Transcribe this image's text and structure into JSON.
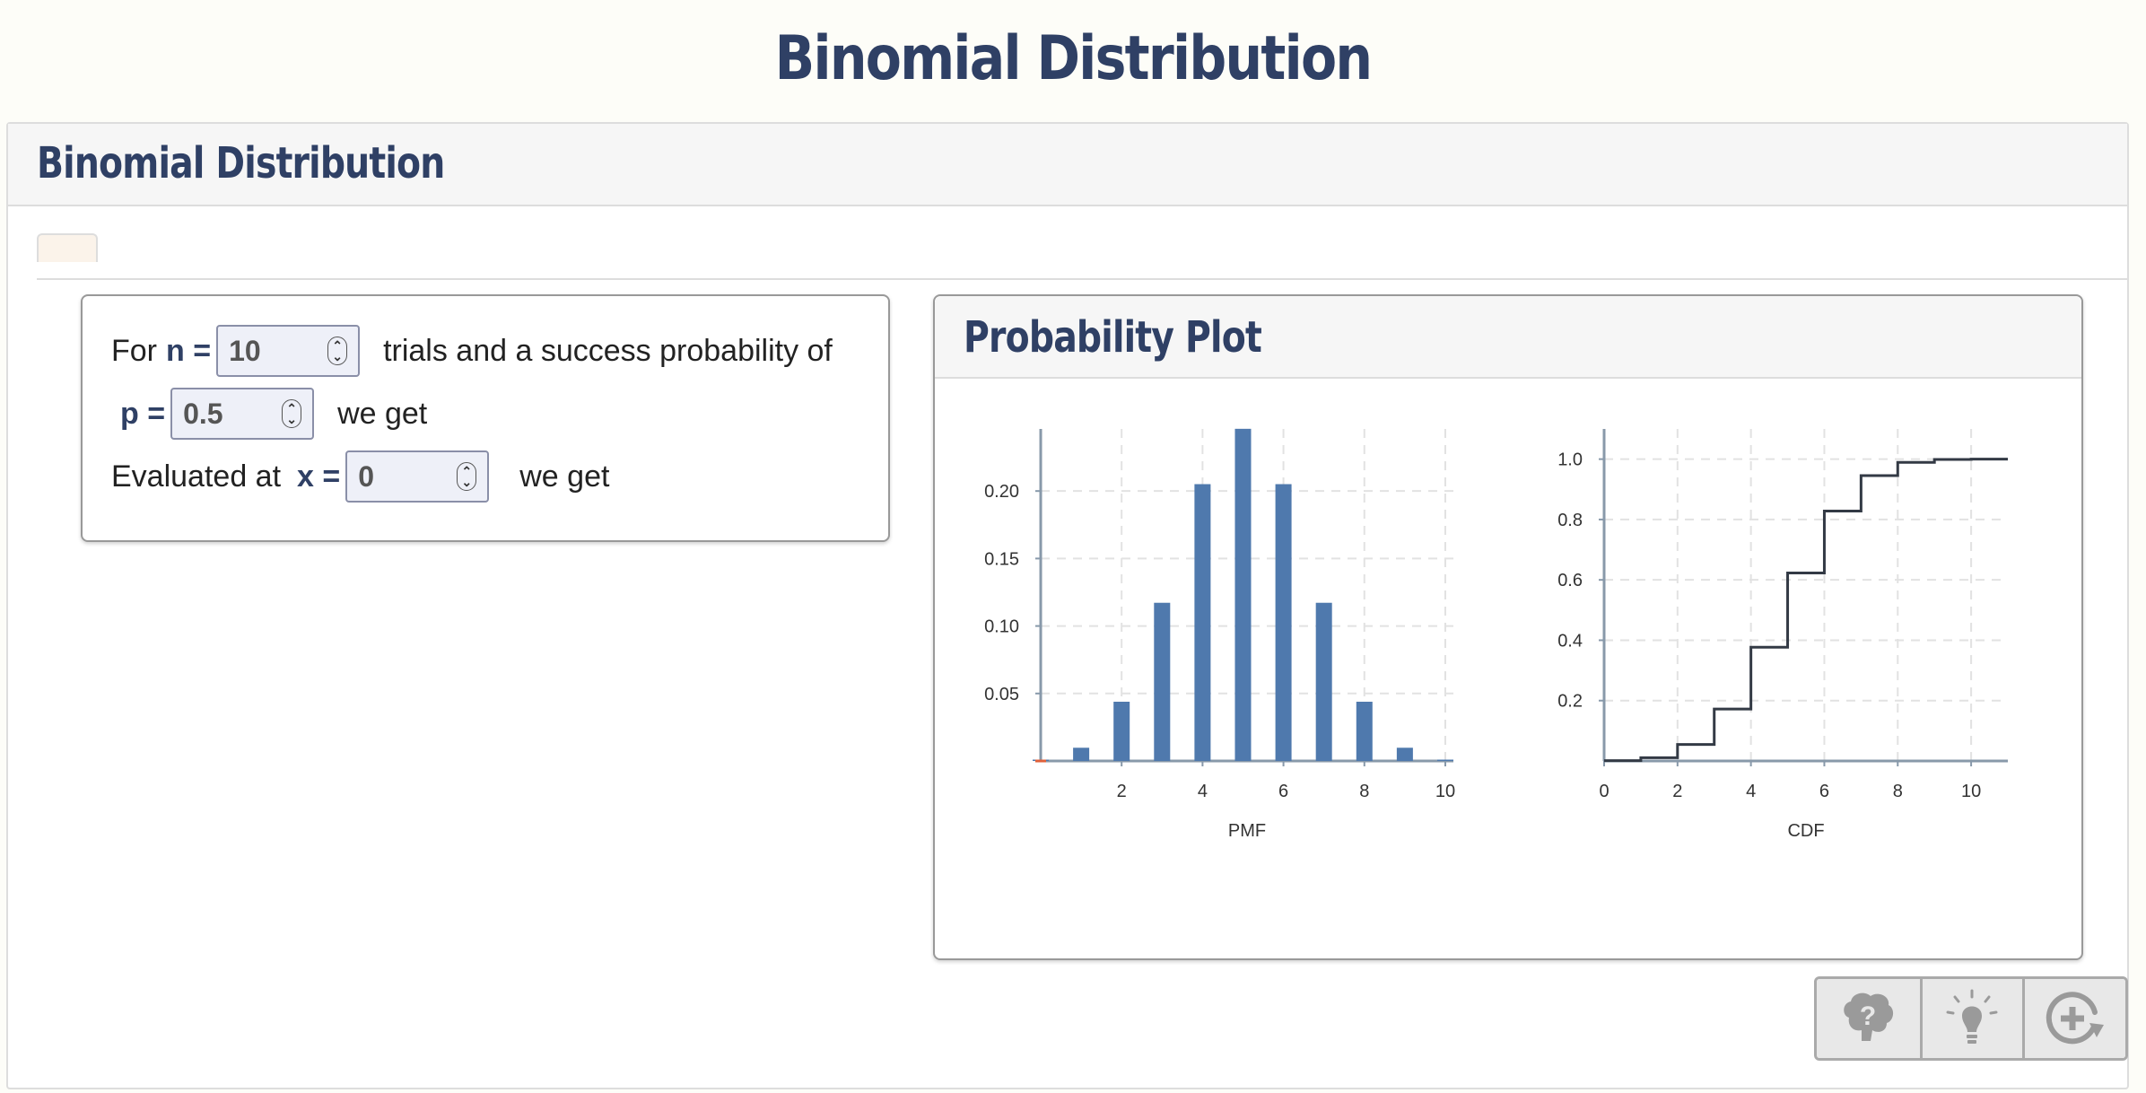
{
  "page": {
    "title": "Binomial Distribution"
  },
  "panel": {
    "title": "Binomial Distribution"
  },
  "inputs": {
    "for_label": "For",
    "n_label": "n =",
    "n_value": "10",
    "trials_text": "trials and a success probability of",
    "p_label": "p =",
    "p_value": "0.5",
    "we_get_1": "we get",
    "evaluated_label": "Evaluated at",
    "x_label": "x =",
    "x_value": "0",
    "we_get_2": "we get"
  },
  "plot_card": {
    "title": "Probability Plot"
  },
  "chart_data": [
    {
      "type": "bar",
      "xlabel": "PMF",
      "x": [
        0,
        1,
        2,
        3,
        4,
        5,
        6,
        7,
        8,
        9,
        10
      ],
      "values": [
        0.001,
        0.0098,
        0.0439,
        0.1172,
        0.2051,
        0.2461,
        0.2051,
        0.1172,
        0.0439,
        0.0098,
        0.001
      ],
      "xlim": [
        0,
        10.2
      ],
      "ylim": [
        0,
        0.246
      ],
      "xticks": [
        "2",
        "4",
        "6",
        "8",
        "10"
      ],
      "yticks": [
        "0.05",
        "0.10",
        "0.15",
        "0.20"
      ],
      "bar_color": "#4f79ad",
      "grid": true
    },
    {
      "type": "line",
      "step": true,
      "xlabel": "CDF",
      "x": [
        0,
        1,
        2,
        3,
        4,
        5,
        6,
        7,
        8,
        9,
        10
      ],
      "values": [
        0.001,
        0.0107,
        0.0547,
        0.1719,
        0.377,
        0.623,
        0.8281,
        0.9453,
        0.9893,
        0.999,
        1.0
      ],
      "xlim": [
        0,
        11
      ],
      "ylim": [
        0,
        1.1
      ],
      "xticks": [
        "0",
        "2",
        "4",
        "6",
        "8",
        "10"
      ],
      "yticks": [
        "0.2",
        "0.4",
        "0.6",
        "0.8",
        "1.0"
      ],
      "line_color": "#333a45",
      "grid": true
    }
  ],
  "buttons": [
    {
      "name": "help-brain-icon"
    },
    {
      "name": "hint-lightbulb-icon"
    },
    {
      "name": "new-problem-icon"
    }
  ]
}
